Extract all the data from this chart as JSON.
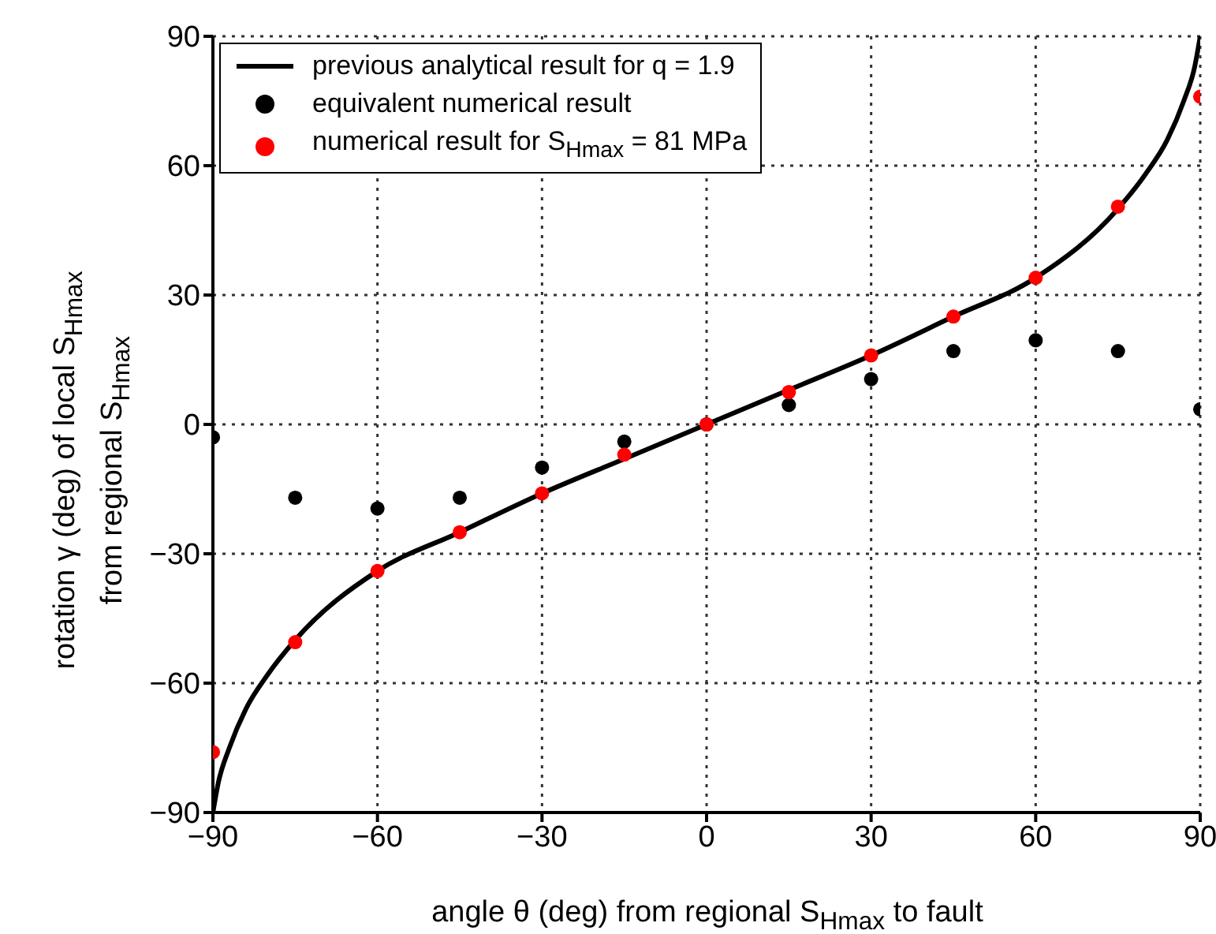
{
  "chart_data": {
    "type": "scatter",
    "xlabel": "angle θ (deg) from regional S$_{Hmax}$ to fault",
    "ylabel": "rotation γ (deg) of local S$_{Hmax}$\nfrom regional S$_{Hmax}$",
    "xlim": [
      -90,
      90
    ],
    "xticks": [
      -90,
      -60,
      -30,
      0,
      30,
      60,
      90
    ],
    "ylim": [
      -90,
      90
    ],
    "yticks": [
      -90,
      -60,
      -30,
      0,
      30,
      60,
      90
    ],
    "grid": true,
    "legend": "top left",
    "series": [
      {
        "name": "previous analytical result for q = 1.9",
        "type": "line",
        "marker": "none",
        "line_style": "solid",
        "color": "#000000",
        "x": [
          -90,
          -89,
          -87,
          -84,
          -80,
          -75,
          -60,
          -45,
          -30,
          -15,
          0,
          15,
          30,
          45,
          60,
          75,
          80,
          84,
          87,
          89,
          90
        ],
        "values": [
          -90,
          -83,
          -75,
          -66,
          -58,
          -50,
          -34,
          -25,
          -16,
          -8,
          0,
          8,
          16,
          25,
          34,
          50,
          58,
          66,
          75,
          83,
          90
        ]
      },
      {
        "name": "equivalent numerical result",
        "marker": "circle",
        "color": "#000000",
        "x": [
          -90,
          -75,
          -60,
          -45,
          -30,
          -15,
          0,
          15,
          30,
          45,
          60,
          75,
          90
        ],
        "values": [
          -3,
          -17,
          -19.5,
          -17,
          -10,
          -4,
          0,
          4.5,
          10.5,
          17,
          19.5,
          17,
          3.5
        ]
      },
      {
        "name": "numerical result for S$_{Hmax}$ = 81 MPa",
        "marker": "circle",
        "color": "#ff0000",
        "x": [
          -90,
          -75,
          -60,
          -45,
          -30,
          -15,
          0,
          15,
          30,
          45,
          60,
          75,
          90
        ],
        "values": [
          -76,
          -50.5,
          -34,
          -25,
          -16,
          -7,
          0,
          7.5,
          16,
          25,
          34,
          50.5,
          76
        ]
      }
    ]
  }
}
